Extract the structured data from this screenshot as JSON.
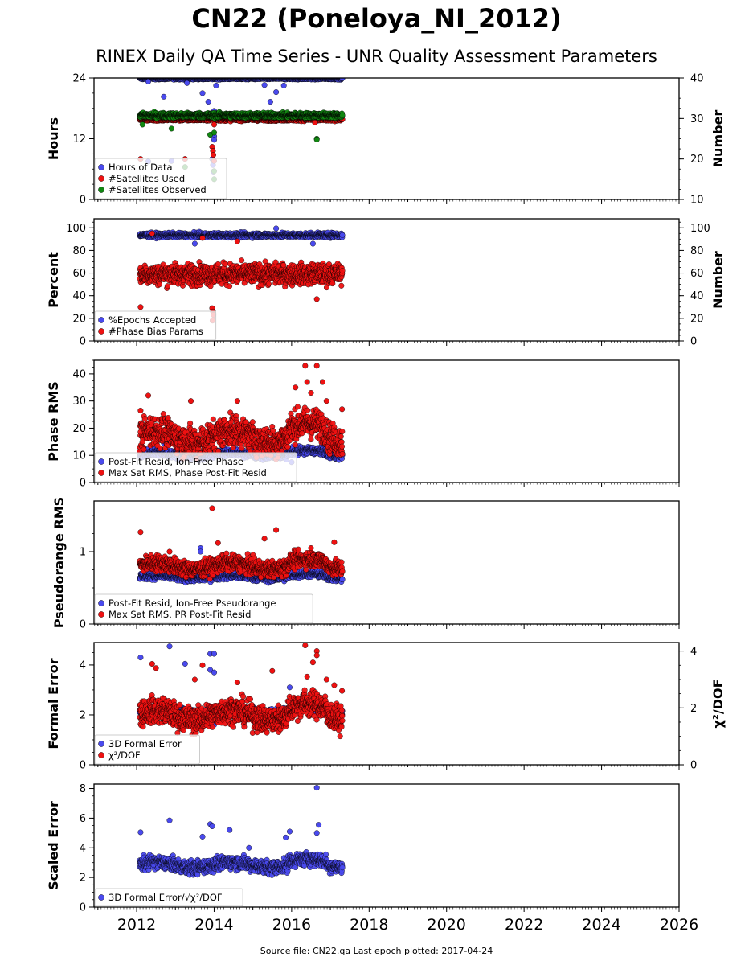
{
  "title": "CN22 (Poneloya_NI_2012)",
  "subtitle": "RINEX Daily QA Time Series - UNR Quality Assessment Parameters",
  "source": "Source file: CN22.qa Last epoch plotted: 2017-04-24",
  "colors": {
    "blue": "#4a4aee",
    "red": "#ee1111",
    "green": "#118811"
  },
  "chart_data": [
    {
      "type": "scatter",
      "ylabel": "Hours",
      "ylabel_right": "Number",
      "ylim": [
        0,
        24
      ],
      "yticks": [
        0,
        12,
        24
      ],
      "ylim_right": [
        10,
        40
      ],
      "yticks_right": [
        10,
        20,
        30,
        40
      ],
      "legend": "lower-left",
      "series": [
        {
          "name": "Hours of Data",
          "color": "#4a4aee",
          "axis": "left",
          "start": 2012.08,
          "end": 2017.31,
          "base": 23.9,
          "noise": 0.2,
          "outliers": [
            [
              2012.3,
              23.3
            ],
            [
              2012.7,
              20.3
            ],
            [
              2013.3,
              23.0
            ],
            [
              2013.7,
              21.0
            ],
            [
              2013.85,
              19.3
            ],
            [
              2014.0,
              17.5
            ],
            [
              2014.0,
              12.5
            ],
            [
              2014.0,
              11.8
            ],
            [
              2013.95,
              8.0
            ],
            [
              2013.97,
              6.8
            ],
            [
              2013.98,
              5.5
            ],
            [
              2014.05,
              22.5
            ],
            [
              2015.3,
              22.6
            ],
            [
              2015.45,
              19.3
            ],
            [
              2015.6,
              21.2
            ],
            [
              2015.8,
              22.5
            ],
            [
              2016.65,
              15.5
            ],
            [
              2012.3,
              7.5
            ],
            [
              2012.9,
              7.6
            ]
          ]
        },
        {
          "name": "#Satellites Used",
          "color": "#ee1111",
          "axis": "right",
          "start": 2012.08,
          "end": 2017.31,
          "base": 29.8,
          "noise": 0.4,
          "outliers": [
            [
              2012.1,
              20.0
            ],
            [
              2013.25,
              20.0
            ],
            [
              2013.95,
              23.0
            ],
            [
              2013.97,
              22.0
            ],
            [
              2013.98,
              21.0
            ],
            [
              2014.0,
              19.5
            ],
            [
              2014.0,
              28.5
            ],
            [
              2016.6,
              29.0
            ]
          ]
        },
        {
          "name": "#Satellites Observed",
          "color": "#118811",
          "axis": "right",
          "start": 2012.08,
          "end": 2017.31,
          "base": 30.8,
          "noise": 0.6,
          "outliers": [
            [
              2012.9,
              27.5
            ],
            [
              2013.9,
              26.0
            ],
            [
              2014.0,
              26.5
            ],
            [
              2016.65,
              25.0
            ],
            [
              2016.65,
              24.8
            ],
            [
              2012.15,
              28.5
            ],
            [
              2014.0,
              17.0
            ],
            [
              2014.0,
              15.0
            ],
            [
              2013.25,
              18.0
            ]
          ]
        }
      ]
    },
    {
      "type": "scatter",
      "ylabel": "Percent",
      "ylabel_right": "Number",
      "ylim": [
        0,
        108
      ],
      "yticks": [
        0,
        20,
        40,
        60,
        80,
        100
      ],
      "ylim_right": [
        0,
        108
      ],
      "yticks_right": [
        0,
        20,
        40,
        60,
        80,
        100
      ],
      "legend": "lower-left",
      "series": [
        {
          "name": "%Epochs Accepted",
          "color": "#4a4aee",
          "axis": "left",
          "start": 2012.08,
          "end": 2017.31,
          "base": 93.5,
          "noise": 2.0,
          "outliers": [
            [
              2015.6,
              99.5
            ],
            [
              2013.5,
              86.0
            ],
            [
              2016.55,
              86.0
            ]
          ]
        },
        {
          "name": "#Phase Bias Params",
          "color": "#ee1111",
          "axis": "right",
          "start": 2012.08,
          "end": 2017.31,
          "base": 59.0,
          "noise": 9.0,
          "outliers": [
            [
              2012.1,
              30.0
            ],
            [
              2012.4,
              95.0
            ],
            [
              2013.95,
              29.0
            ],
            [
              2013.97,
              26.0
            ],
            [
              2013.98,
              23.0
            ],
            [
              2013.96,
              18.0
            ],
            [
              2016.65,
              37.0
            ],
            [
              2013.7,
              91.0
            ],
            [
              2014.6,
              88.0
            ]
          ]
        }
      ]
    },
    {
      "type": "scatter",
      "ylabel": "Phase RMS",
      "ylim": [
        0,
        45
      ],
      "yticks": [
        0,
        10,
        20,
        30,
        40
      ],
      "legend": "lower-left",
      "series": [
        {
          "name": "Post-Fit Resid, Ion-Free Phase",
          "color": "#4a4aee",
          "axis": "left",
          "start": 2012.08,
          "end": 2017.31,
          "base": 10.5,
          "noise": 1.5,
          "outliers": [
            [
              2012.7,
              14.5
            ],
            [
              2013.8,
              13.5
            ],
            [
              2016.0,
              7.5
            ]
          ]
        },
        {
          "name": "Max Sat RMS, Phase Post-Fit Resid",
          "color": "#ee1111",
          "axis": "left",
          "start": 2012.08,
          "end": 2017.31,
          "base": 17.0,
          "noise": 5.5,
          "outliers": [
            [
              2016.35,
              43.0
            ],
            [
              2016.65,
              43.0
            ],
            [
              2016.1,
              35.0
            ],
            [
              2016.4,
              37.0
            ],
            [
              2016.8,
              37.0
            ],
            [
              2016.5,
              33.0
            ],
            [
              2016.9,
              30.0
            ],
            [
              2012.3,
              32.0
            ],
            [
              2013.4,
              30.0
            ],
            [
              2014.6,
              30.0
            ],
            [
              2012.1,
              26.5
            ],
            [
              2017.3,
              27.0
            ]
          ]
        }
      ]
    },
    {
      "type": "scatter",
      "ylabel": "Pseudorange RMS",
      "ylim": [
        0,
        1.7
      ],
      "yticks": [
        0,
        1
      ],
      "legend": "lower-left",
      "series": [
        {
          "name": "Post-Fit Resid, Ion-Free Pseudorange",
          "color": "#4a4aee",
          "axis": "left",
          "start": 2012.08,
          "end": 2017.31,
          "base": 0.65,
          "noise": 0.05,
          "outliers": [
            [
              2013.65,
              1.05
            ],
            [
              2013.65,
              1.0
            ],
            [
              2014.1,
              0.85
            ]
          ]
        },
        {
          "name": "Max Sat RMS, PR Post-Fit Resid",
          "color": "#ee1111",
          "axis": "left",
          "start": 2012.08,
          "end": 2017.31,
          "base": 0.8,
          "noise": 0.11,
          "outliers": [
            [
              2013.95,
              1.6
            ],
            [
              2012.1,
              1.27
            ],
            [
              2015.6,
              1.3
            ],
            [
              2015.3,
              1.18
            ],
            [
              2017.1,
              1.13
            ],
            [
              2014.1,
              1.12
            ],
            [
              2012.85,
              1.0
            ],
            [
              2016.5,
              1.05
            ]
          ]
        }
      ]
    },
    {
      "type": "scatter",
      "ylabel": "Formal Error",
      "ylabel_right": "χ²/DOF",
      "ylim": [
        0,
        4.9
      ],
      "yticks": [
        0,
        2,
        4
      ],
      "ylim_right": [
        0,
        4.3
      ],
      "yticks_right": [
        0,
        2,
        4
      ],
      "legend": "lower-left",
      "series": [
        {
          "name": "3D Formal Error",
          "color": "#4a4aee",
          "axis": "left",
          "start": 2012.08,
          "end": 2017.31,
          "base": 2.15,
          "noise": 0.15,
          "outliers": [
            [
              2012.1,
              4.3
            ],
            [
              2012.85,
              4.75
            ],
            [
              2013.25,
              4.05
            ],
            [
              2013.9,
              4.45
            ],
            [
              2014.0,
              4.45
            ],
            [
              2013.9,
              3.8
            ],
            [
              2014.0,
              3.7
            ],
            [
              2015.95,
              3.1
            ],
            [
              2014.0,
              1.6
            ],
            [
              2012.1,
              1.9
            ]
          ]
        },
        {
          "name": "χ²/DOF",
          "color": "#ee1111",
          "axis": "right",
          "start": 2012.08,
          "end": 2017.31,
          "base": 1.75,
          "noise": 0.45,
          "outliers": [
            [
              2016.35,
              4.2
            ],
            [
              2016.65,
              4.0
            ],
            [
              2016.65,
              3.85
            ],
            [
              2016.55,
              3.6
            ],
            [
              2015.5,
              3.3
            ],
            [
              2012.4,
              3.55
            ],
            [
              2013.7,
              3.5
            ],
            [
              2012.5,
              3.4
            ],
            [
              2016.9,
              3.0
            ],
            [
              2017.1,
              2.8
            ],
            [
              2017.3,
              2.6
            ],
            [
              2016.4,
              3.1
            ],
            [
              2013.5,
              3.0
            ],
            [
              2014.6,
              2.9
            ]
          ]
        }
      ]
    },
    {
      "type": "scatter",
      "ylabel": "Scaled Error",
      "ylim": [
        0,
        8.3
      ],
      "yticks": [
        0,
        2,
        4,
        6,
        8
      ],
      "legend": "lower-left",
      "series": [
        {
          "name": "3D Formal Error/√χ²/DOF",
          "color": "#4a4aee",
          "axis": "left",
          "start": 2012.08,
          "end": 2017.31,
          "base": 2.85,
          "noise": 0.45,
          "outliers": [
            [
              2016.65,
              8.05
            ],
            [
              2012.85,
              5.85
            ],
            [
              2013.9,
              5.6
            ],
            [
              2013.95,
              5.45
            ],
            [
              2014.4,
              5.2
            ],
            [
              2016.7,
              5.55
            ],
            [
              2016.65,
              5.0
            ],
            [
              2012.1,
              5.05
            ],
            [
              2015.95,
              5.1
            ],
            [
              2015.85,
              4.7
            ],
            [
              2013.7,
              4.75
            ],
            [
              2014.9,
              4.0
            ]
          ]
        }
      ]
    }
  ],
  "xaxis": {
    "xlim": [
      2010.9,
      2026.0
    ],
    "ticks": [
      "2012",
      "2014",
      "2016",
      "2018",
      "2020",
      "2022",
      "2024",
      "2026"
    ]
  }
}
